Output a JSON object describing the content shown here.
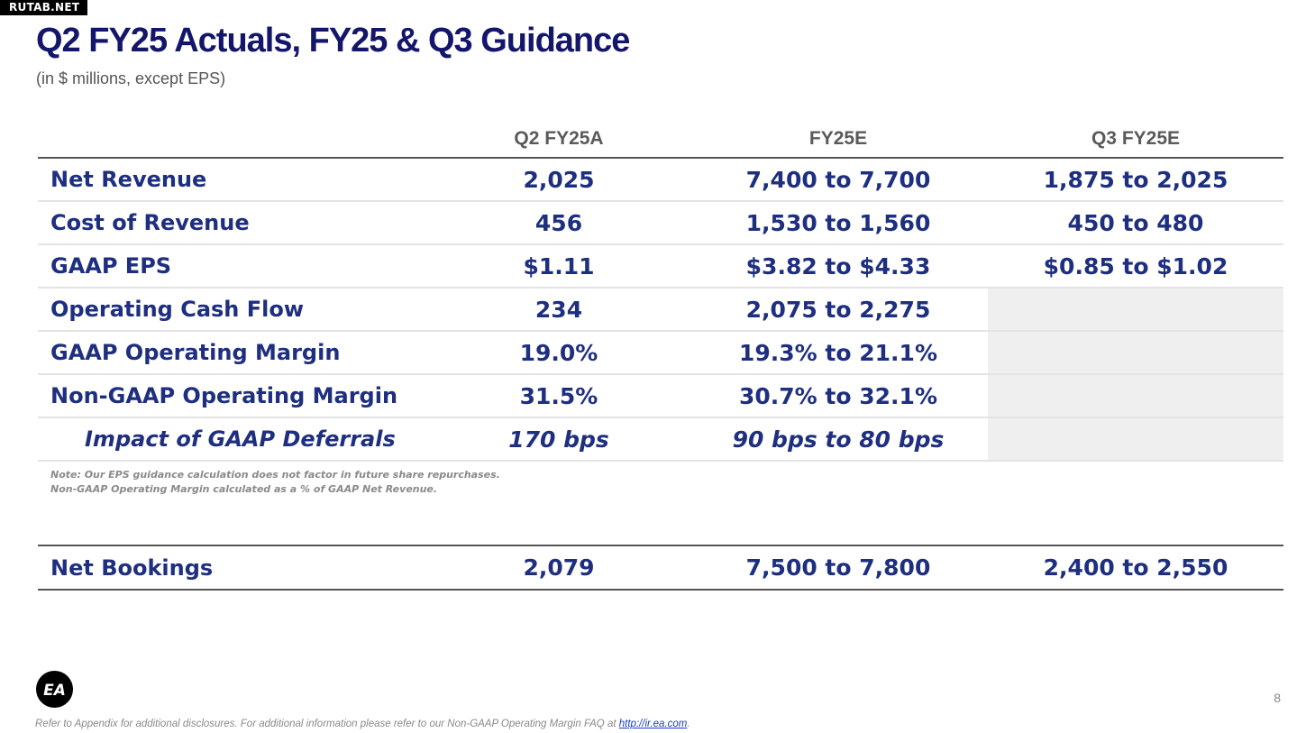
{
  "watermark": "RUTAB.NET",
  "title": "Q2 FY25 Actuals, FY25 & Q3 Guidance",
  "subtitle": "(in $ millions, except EPS)",
  "columns": {
    "q2": "Q2 FY25A",
    "fy": "FY25E",
    "q3": "Q3 FY25E"
  },
  "rows": [
    {
      "label": "Net Revenue",
      "q2": "2,025",
      "fy": "7,400 to 7,700",
      "q3": "1,875 to 2,025"
    },
    {
      "label": "Cost of Revenue",
      "q2": "456",
      "fy": "1,530 to 1,560",
      "q3": "450 to 480"
    },
    {
      "label": "GAAP EPS",
      "q2": "$1.11",
      "fy": "$3.82 to $4.33",
      "q3": "$0.85 to $1.02"
    },
    {
      "label": "Operating Cash Flow",
      "q2": "234",
      "fy": "2,075 to 2,275",
      "q3": ""
    },
    {
      "label": "GAAP Operating Margin",
      "q2": "19.0%",
      "fy": "19.3% to 21.1%",
      "q3": ""
    },
    {
      "label": "Non-GAAP Operating Margin",
      "q2": "31.5%",
      "fy": "30.7% to 32.1%",
      "q3": ""
    },
    {
      "label": "Impact of GAAP Deferrals",
      "q2": "170 bps",
      "fy": "90 bps to 80 bps",
      "q3": ""
    }
  ],
  "note": {
    "line1": "Note: Our EPS guidance calculation does not factor in future share repurchases.",
    "line2": "Non-GAAP Operating Margin calculated as a % of GAAP Net Revenue."
  },
  "bookings": {
    "label": "Net Bookings",
    "q2": "2,079",
    "fy": "7,500 to 7,800",
    "q3": "2,400 to 2,550"
  },
  "logo": {
    "text": "EA",
    "icon": "ea-logo-icon"
  },
  "page_number": "8",
  "footer": {
    "text": "Refer to Appendix for additional disclosures. For additional information please refer to our Non-GAAP Operating Margin FAQ at ",
    "link": "http://ir.ea.com",
    "suffix": "."
  },
  "colors": {
    "title": "#14166b",
    "table_text": "#1f2f80",
    "shade": "#efefef"
  }
}
